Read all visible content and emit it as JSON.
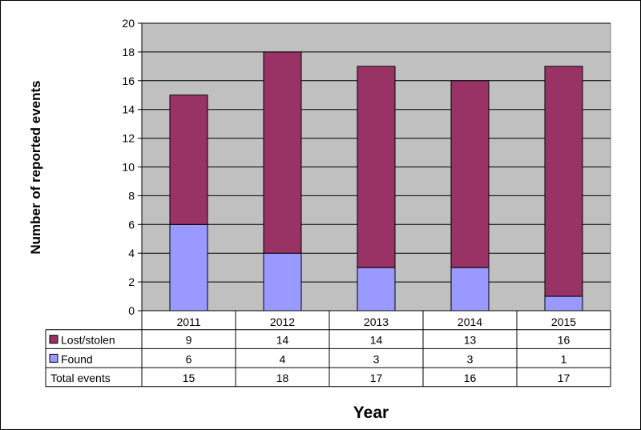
{
  "chart_data": {
    "type": "bar",
    "stacked": true,
    "categories": [
      "2011",
      "2012",
      "2013",
      "2014",
      "2015"
    ],
    "series": [
      {
        "name": "Found",
        "values": [
          6,
          4,
          3,
          3,
          1
        ],
        "color": "#9999FF"
      },
      {
        "name": "Lost/stolen",
        "values": [
          9,
          14,
          14,
          13,
          16
        ],
        "color": "#993366"
      }
    ],
    "totals": {
      "name": "Total events",
      "values": [
        15,
        18,
        17,
        16,
        17
      ]
    },
    "table_rows": [
      "Lost/stolen",
      "Found",
      "Total events"
    ],
    "xlabel": "Year",
    "ylabel": "Number of reported events",
    "ylim": [
      0,
      20
    ],
    "yticks": [
      0,
      2,
      4,
      6,
      8,
      10,
      12,
      14,
      16,
      18,
      20
    ],
    "grid": true,
    "plot_background": "#C0C0C0",
    "legend": "data-table"
  }
}
